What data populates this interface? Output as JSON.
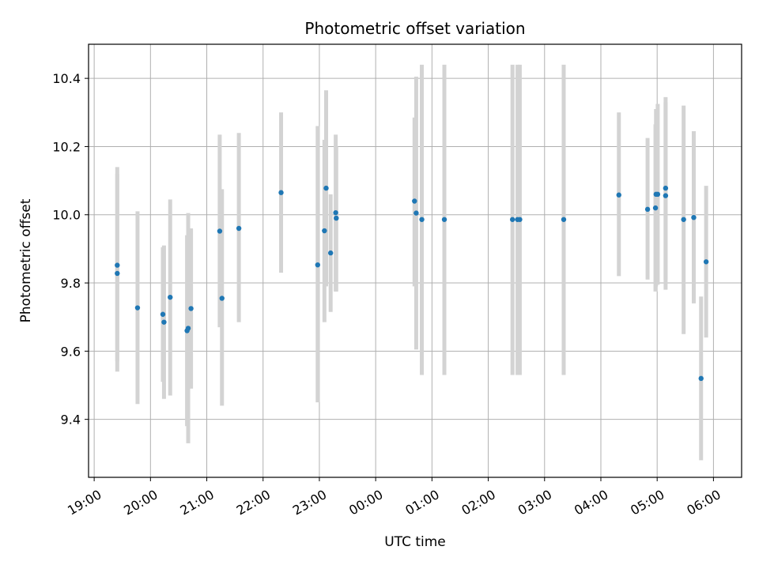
{
  "chart_data": {
    "type": "scatter",
    "title": "Photometric offset variation",
    "xlabel": "UTC time",
    "ylabel": "Photometric offset",
    "x_unit": "hours",
    "xlim": [
      18.9,
      30.5
    ],
    "ylim": [
      9.23,
      10.5
    ],
    "x_tick_values": [
      19,
      20,
      21,
      22,
      23,
      24,
      25,
      26,
      27,
      28,
      29,
      30
    ],
    "x_tick_labels": [
      "19:00",
      "20:00",
      "21:00",
      "22:00",
      "23:00",
      "00:00",
      "01:00",
      "02:00",
      "03:00",
      "04:00",
      "05:00",
      "06:00"
    ],
    "y_ticks": [
      9.4,
      9.6,
      9.8,
      10.0,
      10.2,
      10.4
    ],
    "y_tick_labels": [
      "9.4",
      "9.6",
      "9.8",
      "10.0",
      "10.2",
      "10.4"
    ],
    "grid": true,
    "colors": {
      "points": "#1f77b4",
      "error_bars": "#d3d3d3",
      "grid": "#b0b0b0"
    },
    "points": [
      {
        "x": 19.41,
        "y": 9.852,
        "ylo": 9.57,
        "yhi": 10.14
      },
      {
        "x": 19.41,
        "y": 9.828,
        "ylo": 9.54,
        "yhi": 10.12
      },
      {
        "x": 19.77,
        "y": 9.727,
        "ylo": 9.445,
        "yhi": 10.01
      },
      {
        "x": 20.22,
        "y": 9.708,
        "ylo": 9.51,
        "yhi": 9.905
      },
      {
        "x": 20.24,
        "y": 9.685,
        "ylo": 9.46,
        "yhi": 9.91
      },
      {
        "x": 20.35,
        "y": 9.758,
        "ylo": 9.47,
        "yhi": 10.045
      },
      {
        "x": 20.65,
        "y": 9.66,
        "ylo": 9.38,
        "yhi": 9.94
      },
      {
        "x": 20.67,
        "y": 9.667,
        "ylo": 9.33,
        "yhi": 10.005
      },
      {
        "x": 20.72,
        "y": 9.725,
        "ylo": 9.49,
        "yhi": 9.96
      },
      {
        "x": 21.23,
        "y": 9.952,
        "ylo": 9.67,
        "yhi": 10.235
      },
      {
        "x": 21.27,
        "y": 9.755,
        "ylo": 9.44,
        "yhi": 10.075
      },
      {
        "x": 21.57,
        "y": 9.96,
        "ylo": 9.685,
        "yhi": 10.24
      },
      {
        "x": 22.32,
        "y": 10.065,
        "ylo": 9.83,
        "yhi": 10.3
      },
      {
        "x": 22.97,
        "y": 9.853,
        "ylo": 9.45,
        "yhi": 10.26
      },
      {
        "x": 23.09,
        "y": 9.953,
        "ylo": 9.685,
        "yhi": 10.22
      },
      {
        "x": 23.12,
        "y": 10.078,
        "ylo": 9.79,
        "yhi": 10.365
      },
      {
        "x": 23.2,
        "y": 9.888,
        "ylo": 9.715,
        "yhi": 10.06
      },
      {
        "x": 23.29,
        "y": 10.006,
        "ylo": 9.775,
        "yhi": 10.235
      },
      {
        "x": 23.3,
        "y": 9.99,
        "ylo": 9.775,
        "yhi": 10.2
      },
      {
        "x": 24.69,
        "y": 10.04,
        "ylo": 9.79,
        "yhi": 10.285
      },
      {
        "x": 24.72,
        "y": 10.005,
        "ylo": 9.605,
        "yhi": 10.405
      },
      {
        "x": 24.82,
        "y": 9.986,
        "ylo": 9.53,
        "yhi": 10.44
      },
      {
        "x": 25.22,
        "y": 9.986,
        "ylo": 9.53,
        "yhi": 10.44
      },
      {
        "x": 26.43,
        "y": 9.986,
        "ylo": 9.53,
        "yhi": 10.44
      },
      {
        "x": 26.52,
        "y": 9.986,
        "ylo": 9.53,
        "yhi": 10.44
      },
      {
        "x": 26.56,
        "y": 9.986,
        "ylo": 9.53,
        "yhi": 10.44
      },
      {
        "x": 27.34,
        "y": 9.986,
        "ylo": 9.53,
        "yhi": 10.44
      },
      {
        "x": 28.32,
        "y": 10.058,
        "ylo": 9.82,
        "yhi": 10.3
      },
      {
        "x": 28.83,
        "y": 10.016,
        "ylo": 9.81,
        "yhi": 10.225
      },
      {
        "x": 28.97,
        "y": 10.02,
        "ylo": 9.775,
        "yhi": 10.265
      },
      {
        "x": 28.98,
        "y": 10.06,
        "ylo": 9.79,
        "yhi": 10.31
      },
      {
        "x": 29.01,
        "y": 10.06,
        "ylo": 9.795,
        "yhi": 10.325
      },
      {
        "x": 29.15,
        "y": 10.078,
        "ylo": 9.81,
        "yhi": 10.345
      },
      {
        "x": 29.15,
        "y": 10.056,
        "ylo": 9.78,
        "yhi": 10.33
      },
      {
        "x": 29.47,
        "y": 9.986,
        "ylo": 9.65,
        "yhi": 10.32
      },
      {
        "x": 29.65,
        "y": 9.992,
        "ylo": 9.74,
        "yhi": 10.245
      },
      {
        "x": 29.78,
        "y": 9.52,
        "ylo": 9.28,
        "yhi": 9.76
      },
      {
        "x": 29.87,
        "y": 9.862,
        "ylo": 9.64,
        "yhi": 10.085
      }
    ]
  }
}
